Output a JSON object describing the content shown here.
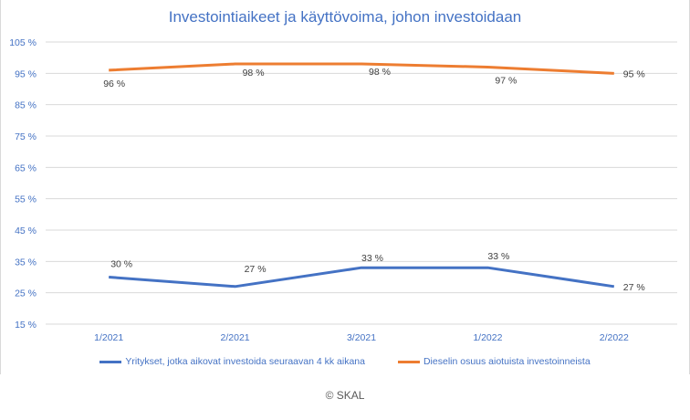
{
  "chart_data": {
    "type": "line",
    "title": "Investointiaikeet ja käyttövoima, johon investoidaan",
    "categories": [
      "1/2021",
      "2/2021",
      "3/2021",
      "1/2022",
      "2/2022"
    ],
    "ylim": [
      15,
      105
    ],
    "yticks": [
      "105 %",
      "95 %",
      "85 %",
      "75 %",
      "65 %",
      "55 %",
      "45 %",
      "35 %",
      "25 %",
      "15 %"
    ],
    "grid": true,
    "legend_position": "bottom",
    "series": [
      {
        "name": "Yritykset, jotka aikovat investoida seuraavan 4 kk aikana",
        "values": [
          30,
          27,
          33,
          33,
          27
        ],
        "labels": [
          "30 %",
          "27 %",
          "33 %",
          "33 %",
          "27 %"
        ],
        "color": "#4472c4"
      },
      {
        "name": "Dieselin osuus aiotuista investoinneista",
        "values": [
          96,
          98,
          98,
          97,
          95
        ],
        "labels": [
          "96 %",
          "98 %",
          "98 %",
          "97 %",
          "95 %"
        ],
        "color": "#ed7d31"
      }
    ]
  },
  "footer": "© SKAL"
}
